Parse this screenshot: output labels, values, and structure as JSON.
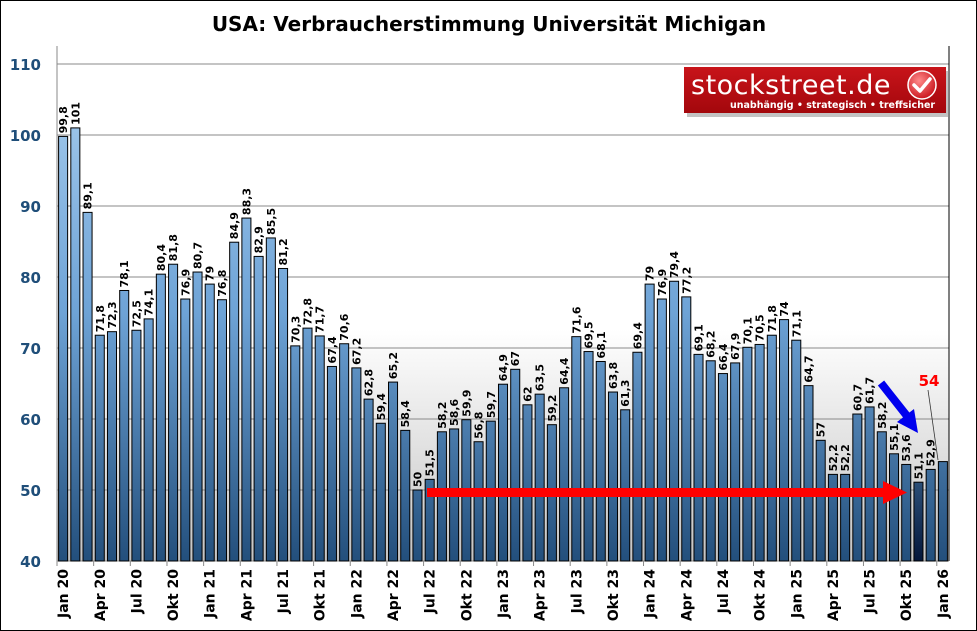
{
  "chart_data": {
    "type": "bar",
    "title": "USA: Verbraucherstimmung Universität Michigan",
    "xlabel": "",
    "ylabel": "",
    "ylim": [
      40,
      110
    ],
    "yticks": [
      40,
      50,
      60,
      70,
      80,
      90,
      100,
      110
    ],
    "grid": true,
    "x_tick_labels": [
      "Jan 20",
      "Apr 20",
      "Jul 20",
      "Okt 20",
      "Jan 21",
      "Apr 21",
      "Jul 21",
      "Okt 21",
      "Jan 22",
      "Apr 22",
      "Jul 22",
      "Okt 22",
      "Jan 23",
      "Apr 23",
      "Jul 23",
      "Okt 23",
      "Jan 24",
      "Apr 24",
      "Jul 24",
      "Okt 24",
      "Jan 25",
      "Apr 25",
      "Jul 25",
      "Okt 25",
      "Jan 26"
    ],
    "x_tick_every_months": 3,
    "values": [
      99.8,
      101,
      89.1,
      71.8,
      72.3,
      78.1,
      72.5,
      74.1,
      80.4,
      81.8,
      76.9,
      80.7,
      79,
      76.8,
      84.9,
      88.3,
      82.9,
      85.5,
      81.2,
      70.3,
      72.8,
      71.7,
      67.4,
      70.6,
      67.2,
      62.8,
      59.4,
      65.2,
      58.4,
      50,
      51.5,
      58.2,
      58.6,
      59.9,
      56.8,
      59.7,
      64.9,
      67,
      62,
      63.5,
      59.2,
      64.4,
      71.6,
      69.5,
      68.1,
      63.8,
      61.3,
      69.4,
      79,
      76.9,
      79.4,
      77.2,
      69.1,
      68.2,
      66.4,
      67.9,
      70.1,
      70.5,
      71.8,
      74,
      71.1,
      64.7,
      57,
      52.2,
      52.2,
      60.7,
      61.7,
      58.2,
      55.1,
      53.6,
      51.1,
      52.9,
      54
    ],
    "highlighted_index": 70,
    "last_value_label": "54",
    "annotations": {
      "red_arrow": "horizontal arrow at ~50 from Jul 22 to Nov 25",
      "blue_arrow": "downward arrow toward Nov 25"
    },
    "colors": {
      "bar_light": "#a3c8ec",
      "bar_dark": "#2a5a8a",
      "highlight_bar": "#0a2a50",
      "axis_labels": "#1f4e79",
      "red_arrow": "#ff0000",
      "blue_arrow": "#0000ee",
      "logo_bg": "#b5090f"
    }
  },
  "logo": {
    "name": "stockstreet.de",
    "tagline": "unabhängig • strategisch • treffsicher"
  }
}
